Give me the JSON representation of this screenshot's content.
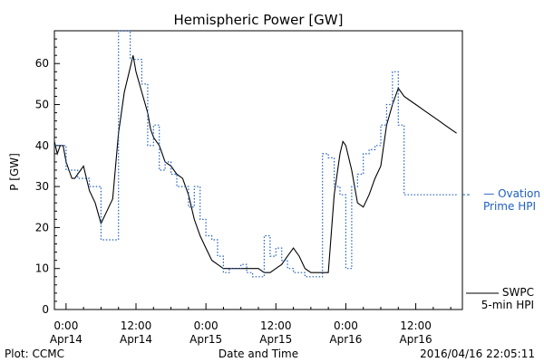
{
  "chart_data": {
    "type": "line",
    "title": "Hemispheric Power [GW]",
    "xlabel": "Date and Time",
    "ylabel": "P [GW]",
    "ylim": [
      0,
      68
    ],
    "xlim": [
      -2,
      68
    ],
    "x_unit": "hours since 2016-04-14 00:00",
    "yticks": [
      0,
      10,
      20,
      30,
      40,
      50,
      60
    ],
    "xticks": [
      {
        "x": 0,
        "line1": "0:00",
        "line2": "Apr14"
      },
      {
        "x": 12,
        "line1": "12:00",
        "line2": "Apr14"
      },
      {
        "x": 24,
        "line1": "0:00",
        "line2": "Apr15"
      },
      {
        "x": 36,
        "line1": "12:00",
        "line2": "Apr15"
      },
      {
        "x": 48,
        "line1": "0:00",
        "line2": "Apr16"
      },
      {
        "x": 60,
        "line1": "12:00",
        "line2": "Apr16"
      }
    ],
    "grid": false,
    "series": [
      {
        "name": "SWPC 5-min HPI",
        "legend_line1": "SWPC",
        "legend_line2": "5-min HPI",
        "color": "#000000",
        "style": "solid",
        "x": [
          -2,
          -1.5,
          -1,
          -0.5,
          0,
          0.5,
          1,
          1.5,
          2,
          3,
          4,
          5,
          6,
          7,
          8,
          9,
          9.5,
          10,
          11,
          11.5,
          12,
          13,
          14,
          14.5,
          15,
          16,
          17,
          18,
          19,
          20,
          21,
          22,
          23,
          24,
          25,
          26,
          27,
          28,
          29,
          30,
          31,
          32,
          33,
          34,
          35,
          36,
          37,
          38,
          39,
          40,
          41,
          42,
          43,
          44,
          45,
          46,
          47,
          47.5,
          48,
          49,
          50,
          51,
          52,
          53,
          54,
          54.5,
          55,
          56,
          57,
          58,
          59,
          60,
          61,
          62,
          63,
          64,
          65,
          66,
          67
        ],
        "y": [
          41,
          38,
          40,
          40,
          36,
          34,
          32,
          32,
          33,
          35,
          29,
          26,
          21,
          24,
          27,
          43,
          48,
          53,
          59,
          62,
          58,
          53,
          48,
          44,
          42,
          40,
          36,
          35,
          33,
          32,
          28,
          22,
          18,
          15,
          12,
          11,
          10,
          10,
          10,
          10,
          10,
          10,
          10,
          9,
          9,
          10,
          11,
          13,
          15,
          13,
          10,
          9,
          9,
          9,
          9,
          28,
          38,
          41,
          40,
          34,
          26,
          25,
          28,
          32,
          35,
          40,
          45,
          50,
          54,
          52,
          51,
          50,
          49,
          48,
          47,
          46,
          45,
          44,
          43
        ]
      },
      {
        "name": "Ovation Prime HPI",
        "legend_line1": "— Ovation",
        "legend_line2": "Prime HPI",
        "color": "#1f5fbf",
        "style": "dotted",
        "x": [
          -2,
          0,
          2,
          4,
          6,
          8,
          9,
          10,
          11,
          12,
          13,
          14,
          15,
          16,
          17,
          18,
          19,
          20,
          21,
          22,
          23,
          24,
          25,
          26,
          27,
          28,
          29,
          30,
          31,
          32,
          33,
          34,
          35,
          36,
          37,
          38,
          39,
          40,
          41,
          42,
          43,
          44,
          45,
          46,
          47,
          48,
          49,
          50,
          51,
          52,
          53,
          54,
          55,
          56,
          57,
          58,
          59,
          60,
          61,
          62,
          63,
          64,
          65,
          66,
          67
        ],
        "y": [
          40,
          34,
          32,
          30,
          17,
          17,
          68,
          68,
          61,
          61,
          55,
          40,
          45,
          34,
          36,
          33,
          30,
          30,
          25,
          30,
          22,
          18,
          17,
          13,
          9,
          10,
          10,
          11,
          9,
          8,
          8,
          18,
          13,
          15,
          12,
          10,
          9,
          9,
          8,
          8,
          8,
          38,
          37,
          30,
          28,
          10,
          30,
          33,
          38,
          39,
          40,
          45,
          50,
          58,
          45,
          28,
          28,
          28,
          28,
          28,
          28,
          28,
          28,
          28,
          28
        ]
      }
    ]
  },
  "plot_credit": "Plot: CCMC",
  "timestamp": "2016/04/16 22:05:11"
}
